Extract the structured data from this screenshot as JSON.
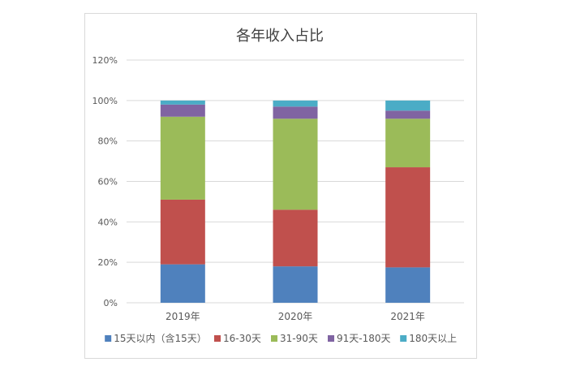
{
  "chart_data": {
    "type": "bar",
    "stacked": true,
    "title": "各年收入占比",
    "categories": [
      "2019年",
      "2020年",
      "2021年"
    ],
    "ylim": [
      0,
      120
    ],
    "yticks": [
      "0%",
      "20%",
      "40%",
      "60%",
      "80%",
      "100%",
      "120%"
    ],
    "grid": true,
    "legend_position": "bottom",
    "series": [
      {
        "name": "15天以内（含15天）",
        "color": "#4F81BD",
        "values": [
          19,
          18,
          17.5
        ]
      },
      {
        "name": "16-30天",
        "color": "#C0504D",
        "values": [
          32,
          28,
          49.5
        ]
      },
      {
        "name": "31-90天",
        "color": "#9BBB59",
        "values": [
          41,
          45,
          24
        ]
      },
      {
        "name": "91天-180天",
        "color": "#8064A2",
        "values": [
          6,
          6,
          4
        ]
      },
      {
        "name": "180天以上",
        "color": "#4BACC6",
        "values": [
          2,
          3,
          5
        ]
      }
    ]
  }
}
